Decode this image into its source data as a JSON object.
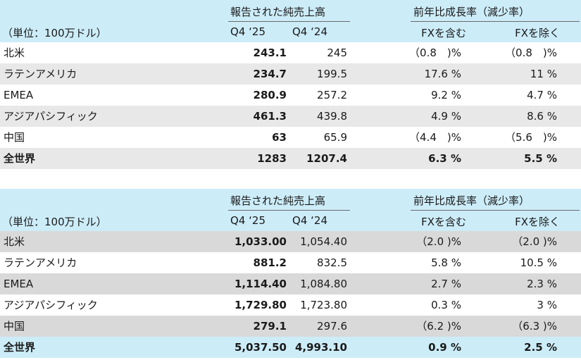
{
  "tables": [
    {
      "header": {
        "group_reported": "報告された純売上高",
        "group_growth": "前年比成長率（減少率）",
        "unit": "（単位：100万ドル）",
        "col_q425": "Q4 ‘25",
        "col_q424": "Q4 ‘24",
        "col_fx_in": "FXを含む",
        "col_fx_ex": "FXを除く"
      },
      "rows": [
        {
          "name": "北米",
          "q425": "243.1",
          "q424": "245",
          "fx_in": "（0.8　)%",
          "fx_ex": "（0.8　)%"
        },
        {
          "name": "ラテンアメリカ",
          "q425": "234.7",
          "q424": "199.5",
          "fx_in": "17.6 %",
          "fx_ex": "11 %"
        },
        {
          "name": "EMEA",
          "q425": "280.9",
          "q424": "257.2",
          "fx_in": "9.2 %",
          "fx_ex": "4.7 %"
        },
        {
          "name": "アジアパシフィック",
          "q425": "461.3",
          "q424": "439.8",
          "fx_in": "4.9 %",
          "fx_ex": "8.6 %"
        },
        {
          "name": "中国",
          "q425": "63",
          "q424": "65.9",
          "fx_in": "（4.4　)%",
          "fx_ex": "（5.6　)%"
        },
        {
          "name": "全世界",
          "q425": "1283",
          "q424": "1207.4",
          "fx_in": "6.3 %",
          "fx_ex": "5.5 %"
        }
      ]
    },
    {
      "header": {
        "group_reported": "報告された純売上高",
        "group_growth": "前年比成長率（減少率）",
        "unit": "（単位：100万ドル）",
        "col_q425": "Q4 ‘25",
        "col_q424": "Q4 ‘24",
        "col_fx_in": "FXを含む",
        "col_fx_ex": "FXを除く"
      },
      "rows": [
        {
          "name": "北米",
          "q425": "1,033.00",
          "q424": "1,054.40",
          "fx_in": "（2.0 )%",
          "fx_ex": "（2.0 )%"
        },
        {
          "name": "ラテンアメリカ",
          "q425": "881.2",
          "q424": "832.5",
          "fx_in": "5.8 %",
          "fx_ex": "10.5 %"
        },
        {
          "name": "EMEA",
          "q425": "1,114.40",
          "q424": "1,084.80",
          "fx_in": "2.7 %",
          "fx_ex": "2.3 %"
        },
        {
          "name": "アジアパシフィック",
          "q425": "1,729.80",
          "q424": "1,723.80",
          "fx_in": "0.3 %",
          "fx_ex": "3 %"
        },
        {
          "name": "中国",
          "q425": "279.1",
          "q424": "297.6",
          "fx_in": "（6.2 )%",
          "fx_ex": "（6.3 )%"
        },
        {
          "name": "全世界",
          "q425": "5,037.50",
          "q424": "4,993.10",
          "fx_in": "0.9 %",
          "fx_ex": "2.5 %"
        }
      ]
    }
  ]
}
